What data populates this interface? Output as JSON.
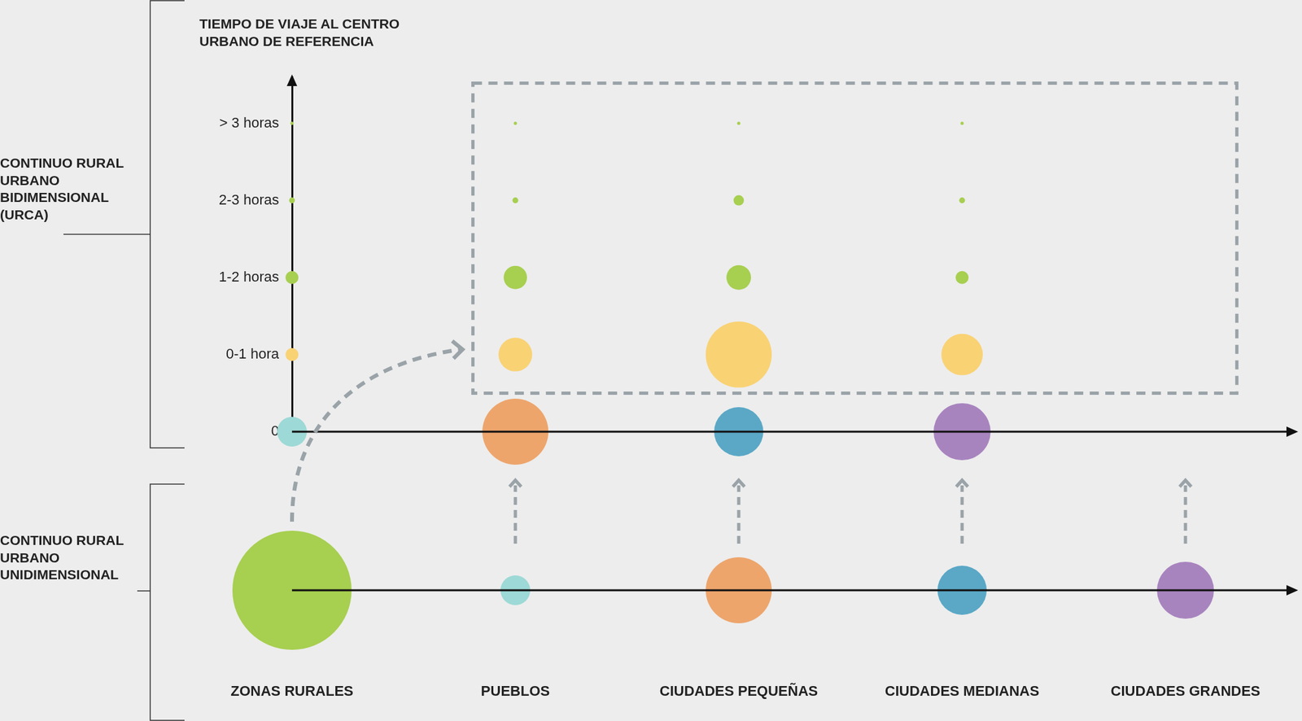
{
  "chart_data": {
    "type": "bubble",
    "categories": [
      "ZONAS RURALES",
      "PUEBLOS",
      "CIUDADES PEQUEÑAS",
      "CIUDADES MEDIANAS",
      "CIUDADES GRANDES"
    ],
    "y_label": "TIEMPO DE VIAJE AL CENTRO URBANO DE REFERENCIA",
    "ylim": [
      0,
      4.6
    ],
    "yticks": [
      0,
      {
        "value": 1,
        "label": "0-1 hora"
      },
      {
        "value": 2,
        "label": "1-2 horas"
      },
      {
        "value": 3,
        "label": "2-3 horas"
      },
      {
        "value": 4,
        "label": "> 3 horas"
      }
    ],
    "grid": false,
    "panels": [
      {
        "label": "CONTINUO RURAL URBANO BIDIMENSIONAL (URCA)",
        "series": [
          {
            "y": 0,
            "sizes": [
              null,
              23,
              51,
              38,
              44
            ],
            "colors": [
              "#a7cf50",
              "#9dd9d6",
              "#eda56c",
              "#5aa8c6",
              "#a884bf"
            ]
          },
          {
            "y": 1,
            "sizes": [
              null,
              10,
              26,
              51,
              32
            ],
            "color": "#f9d274"
          },
          {
            "y": 2,
            "sizes": [
              null,
              10,
              18,
              19,
              10
            ],
            "color": "#a7cf50"
          },
          {
            "y": 3,
            "sizes": [
              null,
              4.5,
              4.5,
              8,
              4.5
            ],
            "color": "#a7cf50"
          },
          {
            "y": 4,
            "sizes": [
              null,
              2.5,
              2.5,
              2.5,
              2.5
            ],
            "color": "#a7cf50"
          }
        ]
      },
      {
        "label": "CONTINUO RURAL URBANO UNIDIMENSIONAL",
        "series": [
          {
            "sizes": [
              92,
              23,
              51,
              38,
              44
            ],
            "colors": [
              "#a7cf50",
              "#9dd9d6",
              "#eda56c",
              "#5aa8c6",
              "#a884bf"
            ]
          }
        ]
      }
    ]
  }
}
